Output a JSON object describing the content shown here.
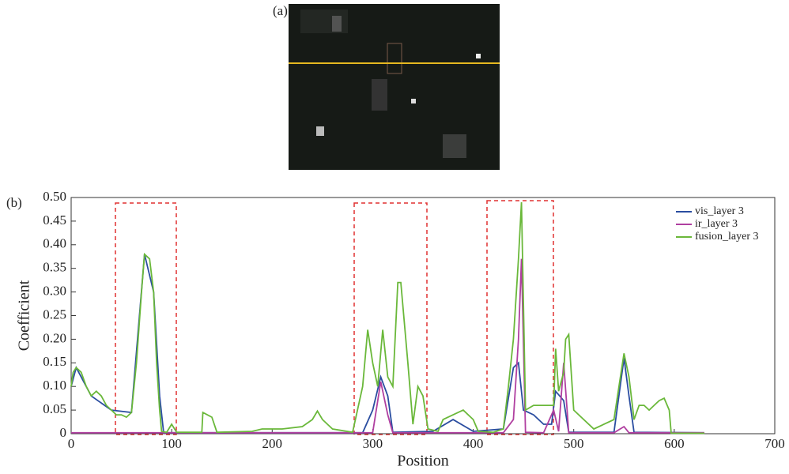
{
  "panel_a_label": "(a)",
  "chart_data": {
    "type": "line",
    "panel_label": "(b)",
    "x_label": "Position",
    "y_label": "Coefficient",
    "xlim": [
      0,
      700
    ],
    "ylim": [
      0,
      0.5
    ],
    "xticks": [
      0,
      100,
      200,
      300,
      400,
      500,
      600,
      700
    ],
    "yticks": [
      0,
      0.05,
      {
        "value": 0.1,
        "label": "0.10"
      },
      0.15,
      {
        "value": 0.2,
        "label": "0.20"
      },
      0.25,
      {
        "value": 0.3,
        "label": "0.30"
      },
      0.35,
      {
        "value": 0.4,
        "label": "0.40"
      },
      0.45,
      {
        "value": 0.5,
        "label": "0.50"
      }
    ],
    "legend": "upper right",
    "series": [
      {
        "name": "vis_layer 3",
        "color": "#2a4da0",
        "x": [
          0,
          5,
          20,
          40,
          60,
          73,
          82,
          88,
          92,
          290,
          300,
          308,
          315,
          320,
          360,
          380,
          400,
          430,
          440,
          445,
          450,
          460,
          470,
          478,
          482,
          490,
          495,
          540,
          550,
          555,
          560,
          630
        ],
        "values": [
          0.1,
          0.14,
          0.08,
          0.05,
          0.045,
          0.38,
          0.3,
          0.08,
          0.002,
          0.002,
          0.05,
          0.12,
          0.08,
          0.003,
          0.005,
          0.03,
          0.005,
          0.01,
          0.14,
          0.15,
          0.05,
          0.04,
          0.02,
          0.02,
          0.09,
          0.07,
          0.003,
          0.003,
          0.16,
          0.08,
          0.003,
          0.002
        ]
      },
      {
        "name": "ir_layer 3",
        "color": "#b03fa0",
        "x": [
          0,
          300,
          308,
          315,
          320,
          430,
          440,
          445,
          448,
          452,
          470,
          480,
          485,
          490,
          495,
          540,
          550,
          555,
          630
        ],
        "values": [
          0.002,
          0.002,
          0.11,
          0.04,
          0.002,
          0.002,
          0.03,
          0.2,
          0.37,
          0.003,
          0.002,
          0.05,
          0.005,
          0.15,
          0.002,
          0.002,
          0.015,
          0.002,
          0.002
        ]
      },
      {
        "name": "fusion_layer 3",
        "color": "#6ab83a",
        "x": [
          0,
          2,
          5,
          10,
          15,
          20,
          25,
          30,
          35,
          40,
          45,
          50,
          55,
          60,
          65,
          70,
          73,
          78,
          82,
          85,
          88,
          90,
          95,
          100,
          105,
          130,
          131,
          140,
          145,
          180,
          190,
          210,
          230,
          240,
          245,
          250,
          260,
          280,
          290,
          295,
          300,
          305,
          310,
          315,
          320,
          325,
          328,
          335,
          340,
          345,
          350,
          355,
          365,
          370,
          380,
          390,
          400,
          405,
          420,
          430,
          435,
          440,
          445,
          448,
          452,
          460,
          470,
          480,
          482,
          485,
          490,
          492,
          495,
          500,
          520,
          540,
          545,
          550,
          555,
          560,
          565,
          570,
          575,
          580,
          585,
          590,
          595,
          597,
          630
        ],
        "values": [
          0.1,
          0.13,
          0.14,
          0.13,
          0.1,
          0.08,
          0.09,
          0.08,
          0.06,
          0.05,
          0.04,
          0.04,
          0.035,
          0.045,
          0.15,
          0.3,
          0.38,
          0.37,
          0.3,
          0.15,
          0.05,
          0.005,
          0.003,
          0.02,
          0.003,
          0.003,
          0.045,
          0.035,
          0.003,
          0.005,
          0.01,
          0.01,
          0.015,
          0.03,
          0.048,
          0.03,
          0.01,
          0.003,
          0.1,
          0.22,
          0.15,
          0.1,
          0.22,
          0.12,
          0.1,
          0.32,
          0.32,
          0.15,
          0.02,
          0.1,
          0.08,
          0.01,
          0.005,
          0.03,
          0.04,
          0.05,
          0.03,
          0.005,
          0.003,
          0.01,
          0.1,
          0.2,
          0.37,
          0.49,
          0.05,
          0.06,
          0.06,
          0.06,
          0.18,
          0.09,
          0.13,
          0.2,
          0.21,
          0.05,
          0.01,
          0.03,
          0.1,
          0.17,
          0.12,
          0.03,
          0.06,
          0.06,
          0.05,
          0.06,
          0.07,
          0.075,
          0.05,
          0.001,
          0.001
        ]
      }
    ]
  }
}
